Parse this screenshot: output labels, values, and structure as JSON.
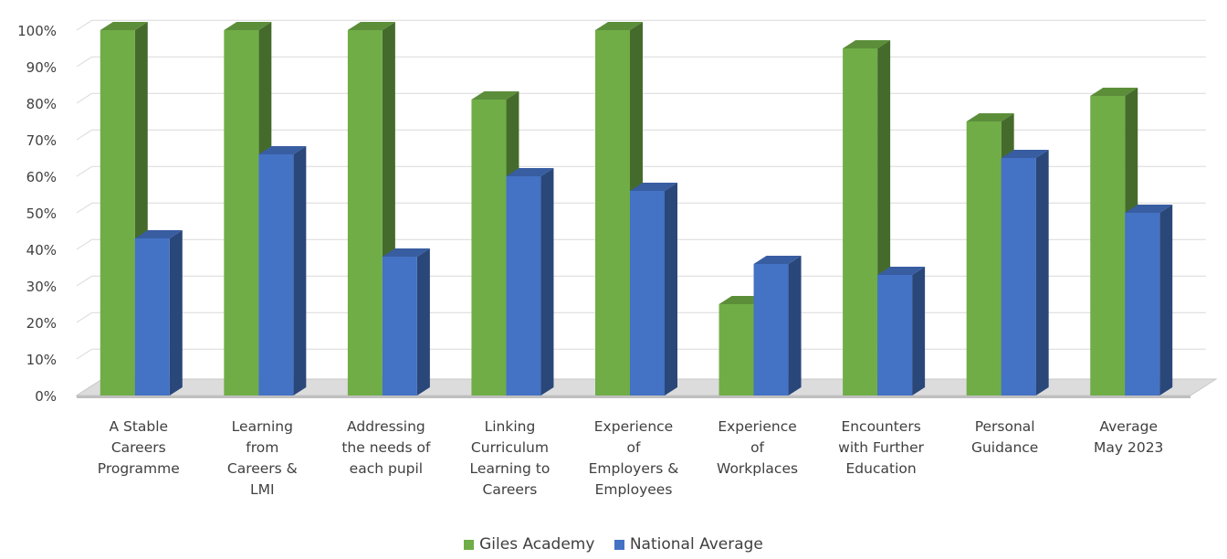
{
  "chart_data": {
    "type": "bar",
    "title": "",
    "xlabel": "",
    "ylabel": "",
    "ylim": [
      0,
      100
    ],
    "y_ticks": [
      "0%",
      "10%",
      "20%",
      "30%",
      "40%",
      "50%",
      "60%",
      "70%",
      "80%",
      "90%",
      "100%"
    ],
    "grid": true,
    "legend_position": "bottom",
    "categories": [
      [
        "A Stable",
        "Careers",
        "Programme"
      ],
      [
        "Learning",
        "from",
        "Careers &",
        "LMI"
      ],
      [
        "Addressing",
        "the needs of",
        "each pupil"
      ],
      [
        "Linking",
        "Curriculum",
        "Learning to",
        "Careers"
      ],
      [
        "Experience",
        "of",
        "Employers &",
        "Employees"
      ],
      [
        "Experience",
        "of",
        "Workplaces"
      ],
      [
        "Encounters",
        "with Further",
        "Education"
      ],
      [
        "Personal",
        "Guidance"
      ],
      [
        "Average",
        "May 2023"
      ]
    ],
    "series": [
      {
        "name": "Giles Academy",
        "color": "#70ad47",
        "values": [
          100,
          100,
          100,
          81,
          100,
          25,
          95,
          75,
          82
        ]
      },
      {
        "name": "National Average",
        "color": "#4472c4",
        "values": [
          43,
          66,
          38,
          60,
          56,
          36,
          33,
          65,
          50
        ]
      }
    ]
  }
}
